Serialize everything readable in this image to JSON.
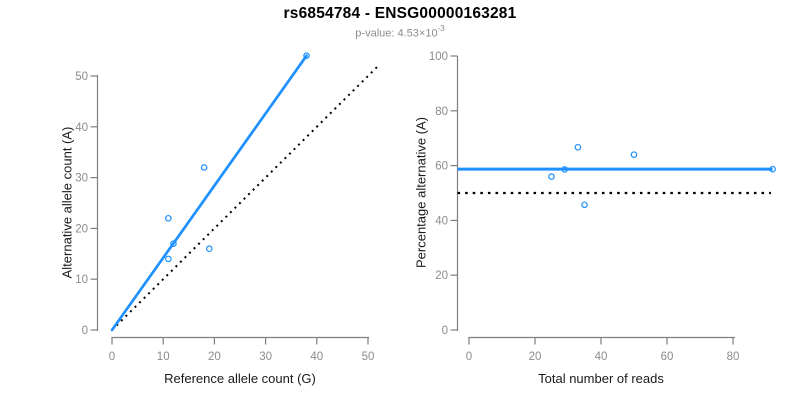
{
  "header": {
    "title": "rs6854784 - ENSG00000163281",
    "subtitle_base": "p-value: 4.53×10",
    "subtitle_exponent": "-3"
  },
  "colors": {
    "series_blue": "#1E90FF",
    "identity_black": "#000000",
    "axis": "#7f7f7f",
    "tick_label": "#8c8c8c",
    "axis_label": "#1a1a1a",
    "title": "#000000",
    "subtitle": "#8c8c8c",
    "background": "#ffffff"
  },
  "chart_data": [
    {
      "type": "scatter",
      "name": "allele-counts",
      "xlabel": "Reference allele count (G)",
      "ylabel": "Alternative allele count (A)",
      "xlim": [
        0,
        52
      ],
      "ylim": [
        0,
        54.5
      ],
      "xticks": [
        0,
        10,
        20,
        30,
        40,
        50
      ],
      "yticks": [
        0,
        10,
        20,
        30,
        40,
        50
      ],
      "points": [
        [
          11,
          22
        ],
        [
          11,
          14
        ],
        [
          12,
          17
        ],
        [
          18,
          32
        ],
        [
          19,
          16
        ],
        [
          38,
          54
        ]
      ],
      "regression_line": {
        "from": [
          0,
          0
        ],
        "to": [
          38,
          54
        ],
        "style": "solid"
      },
      "identity_line": {
        "from": [
          0,
          0
        ],
        "to": [
          52,
          52
        ],
        "style": "dotted"
      },
      "legend": null,
      "grid": false
    },
    {
      "type": "scatter",
      "name": "percentage-alternative",
      "xlabel": "Total number of reads",
      "ylabel": "Percentage alternative (A)",
      "xlim": [
        0,
        92
      ],
      "ylim": [
        0,
        100
      ],
      "xticks": [
        0,
        20,
        40,
        60,
        80
      ],
      "yticks": [
        0,
        20,
        40,
        60,
        80,
        100
      ],
      "points": [
        [
          25,
          56
        ],
        [
          29,
          58.6
        ],
        [
          33,
          66.7
        ],
        [
          35,
          45.7
        ],
        [
          50,
          64
        ],
        [
          92,
          58.7
        ]
      ],
      "mean_line": {
        "value": 58.7,
        "style": "solid"
      },
      "reference_line": {
        "value": 50,
        "style": "dotted"
      },
      "legend": null,
      "grid": false
    }
  ]
}
